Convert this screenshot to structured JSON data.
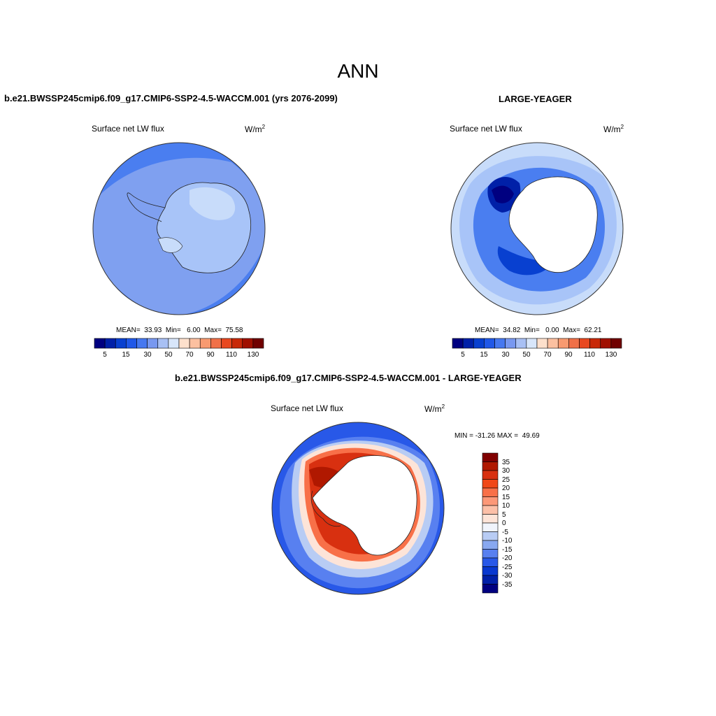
{
  "title": "ANN",
  "panels": [
    {
      "case": "b.e21.BWSSP245cmip6.f09_g17.CMIP6-SSP2-4.5-WACCM.001 (yrs 2076-2099)",
      "field": "Surface net LW flux",
      "units": "W/m",
      "units_exp": "2",
      "stats": "MEAN=  33.93  Min=   6.00  Max=  75.58"
    },
    {
      "case": "LARGE-YEAGER",
      "field": "Surface net LW flux",
      "units": "W/m",
      "units_exp": "2",
      "stats": "MEAN=  34.82  Min=   0.00  Max=  62.21"
    },
    {
      "case": "b.e21.BWSSP245cmip6.f09_g17.CMIP6-SSP2-4.5-WACCM.001 - LARGE-YEAGER",
      "field": "Surface net LW flux",
      "units": "W/m",
      "units_exp": "2",
      "stats": "MIN = -31.26 MAX =  49.69"
    }
  ],
  "colorbar_abs": {
    "labels": [
      "5",
      "15",
      "30",
      "50",
      "70",
      "90",
      "110",
      "130"
    ],
    "colors": [
      "#000080",
      "#0020a8",
      "#0840d0",
      "#2058e8",
      "#4678f0",
      "#7898f0",
      "#a8c0f4",
      "#d8e6fa",
      "#fde0cc",
      "#fcc0a0",
      "#f89a70",
      "#f07048",
      "#e84820",
      "#c82808",
      "#a01000",
      "#700000"
    ]
  },
  "colorbar_diff": {
    "labels": [
      "35",
      "30",
      "25",
      "20",
      "15",
      "10",
      "5",
      "0",
      "-5",
      "-10",
      "-15",
      "-20",
      "-25",
      "-30",
      "-35"
    ],
    "colors": [
      "#800000",
      "#b01800",
      "#d83010",
      "#f04818",
      "#f87048",
      "#fc9878",
      "#fcc0a8",
      "#fde4d8",
      "#f0f4fc",
      "#b8ccf4",
      "#88a8f0",
      "#5880f0",
      "#2858e8",
      "#0838d0",
      "#0020a8",
      "#000080"
    ]
  },
  "colors": {
    "ocean_light": "#7fa0f0",
    "ocean_mid": "#4a7ef0",
    "land_light": "#a8c4f8",
    "land_pale": "#c8dcfa",
    "white": "#ffffff"
  }
}
